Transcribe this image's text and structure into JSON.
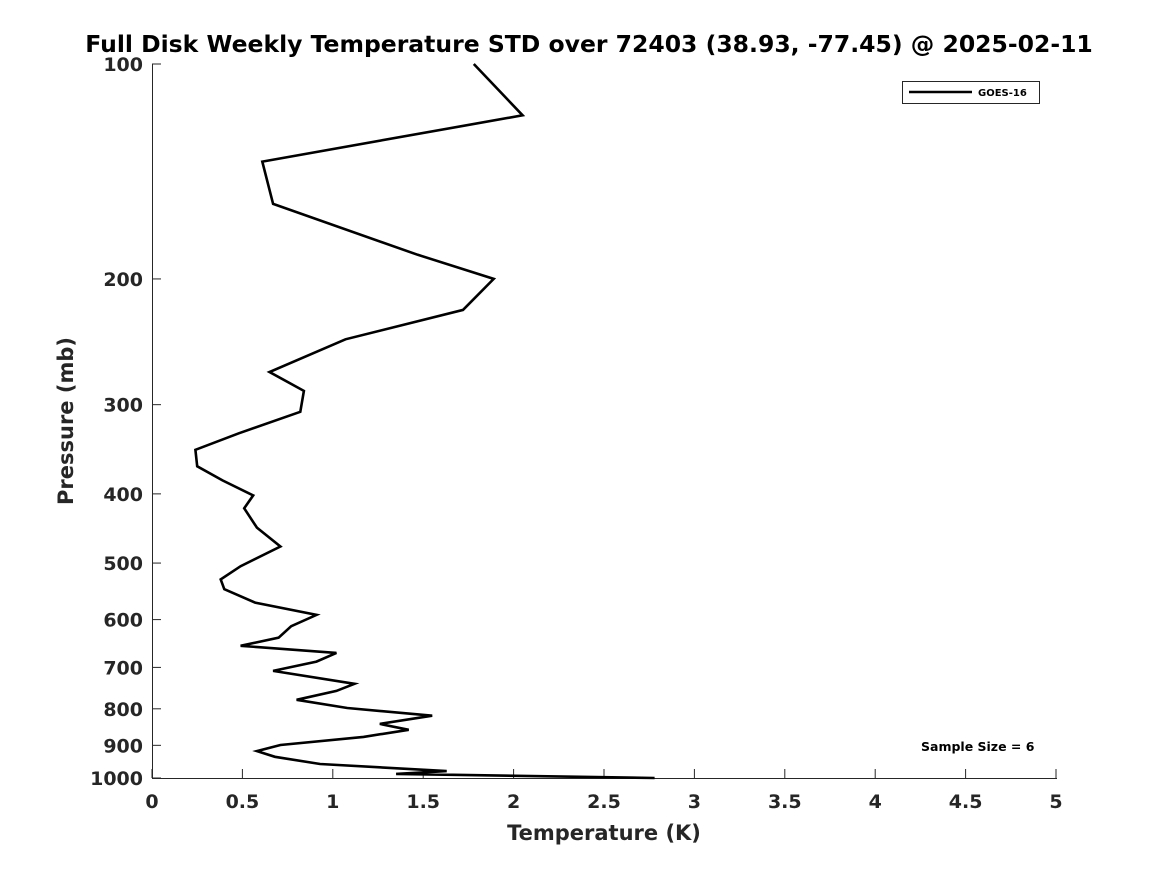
{
  "chart_data": {
    "type": "line",
    "title": "Full Disk Weekly Temperature STD over 72403 (38.93, -77.45) @ 2025-02-11",
    "xlabel": "Temperature (K)",
    "ylabel": "Pressure (mb)",
    "xlim": [
      0,
      5
    ],
    "ylim": [
      100,
      1000
    ],
    "y_scale": "log",
    "y_reversed": true,
    "xticks": [
      0,
      0.5,
      1,
      1.5,
      2,
      2.5,
      3,
      3.5,
      4,
      4.5,
      5
    ],
    "xtick_labels": [
      "0",
      "0.5",
      "1",
      "1.5",
      "2",
      "2.5",
      "3",
      "3.5",
      "4",
      "4.5",
      "5"
    ],
    "yticks": [
      100,
      200,
      300,
      400,
      500,
      600,
      700,
      800,
      900,
      1000
    ],
    "ytick_labels": [
      "100",
      "200",
      "300",
      "400",
      "500",
      "600",
      "700",
      "800",
      "900",
      "1000"
    ],
    "grid": false,
    "legend_position": "top-right",
    "series": [
      {
        "name": "GOES-16",
        "color": "#000000",
        "points": [
          [
            1.78,
            100
          ],
          [
            2.05,
            118
          ],
          [
            0.61,
            137
          ],
          [
            0.67,
            157
          ],
          [
            1.47,
            185
          ],
          [
            1.89,
            200
          ],
          [
            1.72,
            221
          ],
          [
            1.07,
            243
          ],
          [
            0.65,
            270
          ],
          [
            0.84,
            287
          ],
          [
            0.82,
            307
          ],
          [
            0.48,
            329
          ],
          [
            0.24,
            347
          ],
          [
            0.25,
            366
          ],
          [
            0.39,
            383
          ],
          [
            0.56,
            402
          ],
          [
            0.51,
            419
          ],
          [
            0.58,
            446
          ],
          [
            0.71,
            474
          ],
          [
            0.49,
            505
          ],
          [
            0.38,
            527
          ],
          [
            0.4,
            544
          ],
          [
            0.57,
            568
          ],
          [
            0.91,
            591
          ],
          [
            0.77,
            613
          ],
          [
            0.7,
            636
          ],
          [
            0.49,
            653
          ],
          [
            1.02,
            668
          ],
          [
            0.91,
            687
          ],
          [
            0.67,
            708
          ],
          [
            1.12,
            738
          ],
          [
            1.02,
            755
          ],
          [
            0.8,
            777
          ],
          [
            1.08,
            798
          ],
          [
            1.55,
            818
          ],
          [
            1.26,
            840
          ],
          [
            1.42,
            856
          ],
          [
            1.17,
            876
          ],
          [
            0.71,
            899
          ],
          [
            0.58,
            917
          ],
          [
            0.68,
            934
          ],
          [
            0.93,
            956
          ],
          [
            1.63,
            978
          ],
          [
            1.35,
            987
          ],
          [
            2.78,
            1000
          ]
        ]
      }
    ],
    "annotations": [
      "Sample Size = 6"
    ]
  }
}
